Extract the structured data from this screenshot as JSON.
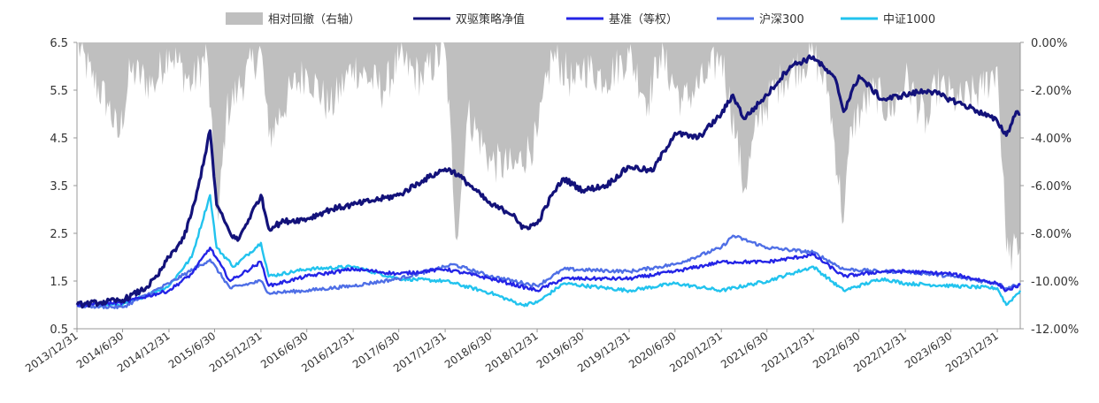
{
  "chart_data": {
    "type": "line",
    "legend": {
      "placement": "top-center",
      "entries": [
        {
          "label": "相对回撤（右轴）",
          "kind": "area",
          "color": "#bfbfbf"
        },
        {
          "label": "双驱策略净值",
          "kind": "line",
          "color": "#13127a"
        },
        {
          "label": "基准（等权）",
          "kind": "line",
          "color": "#2424e6"
        },
        {
          "label": "沪深300",
          "kind": "line",
          "color": "#4f6fe6"
        },
        {
          "label": "中证1000",
          "kind": "line",
          "color": "#22c3ee"
        }
      ]
    },
    "x_start": "2013/12/31",
    "x_end": "2024/3/31",
    "x_ticks": [
      "2013/12/31",
      "2014/6/30",
      "2014/12/31",
      "2015/6/30",
      "2015/12/31",
      "2016/6/30",
      "2016/12/31",
      "2017/6/30",
      "2017/12/31",
      "2018/6/30",
      "2018/12/31",
      "2019/6/30",
      "2019/12/31",
      "2020/6/30",
      "2020/12/31",
      "2021/6/30",
      "2021/12/31",
      "2022/6/30",
      "2022/12/31",
      "2023/6/30",
      "2023/12/31"
    ],
    "y_left": {
      "min": 0.5,
      "max": 6.5,
      "ticks": [
        "6.5",
        "5.5",
        "4.5",
        "3.5",
        "2.5",
        "1.5",
        "0.5"
      ]
    },
    "y_right": {
      "min": -12,
      "max": 0,
      "ticks": [
        "0.00%",
        "-2.00%",
        "-4.00%",
        "-6.00%",
        "-8.00%",
        "-10.00%",
        "-12.00%"
      ]
    },
    "grid": false,
    "series": [
      {
        "name": "双驱策略净值",
        "axis": "left",
        "color": "#13127a",
        "width": 3.2,
        "points": [
          [
            "2013/12/31",
            1.0
          ],
          [
            "2014/3/31",
            1.05
          ],
          [
            "2014/6/30",
            1.1
          ],
          [
            "2014/9/30",
            1.35
          ],
          [
            "2014/11/15",
            1.6
          ],
          [
            "2014/12/31",
            2.0
          ],
          [
            "2015/2/28",
            2.4
          ],
          [
            "2015/4/15",
            3.2
          ],
          [
            "2015/6/12",
            4.65
          ],
          [
            "2015/7/8",
            3.1
          ],
          [
            "2015/8/31",
            2.5
          ],
          [
            "2015/9/30",
            2.35
          ],
          [
            "2015/12/31",
            3.3
          ],
          [
            "2016/1/31",
            2.6
          ],
          [
            "2016/3/31",
            2.75
          ],
          [
            "2016/6/30",
            2.8
          ],
          [
            "2016/9/30",
            3.0
          ],
          [
            "2016/12/31",
            3.1
          ],
          [
            "2017/3/31",
            3.2
          ],
          [
            "2017/6/30",
            3.3
          ],
          [
            "2017/9/30",
            3.6
          ],
          [
            "2017/12/31",
            3.85
          ],
          [
            "2018/1/31",
            3.8
          ],
          [
            "2018/3/31",
            3.55
          ],
          [
            "2018/6/30",
            3.1
          ],
          [
            "2018/9/30",
            2.9
          ],
          [
            "2018/10/31",
            2.6
          ],
          [
            "2018/12/31",
            2.7
          ],
          [
            "2019/2/28",
            3.3
          ],
          [
            "2019/4/15",
            3.65
          ],
          [
            "2019/6/30",
            3.4
          ],
          [
            "2019/9/30",
            3.5
          ],
          [
            "2019/12/31",
            3.9
          ],
          [
            "2020/3/31",
            3.8
          ],
          [
            "2020/6/30",
            4.6
          ],
          [
            "2020/9/30",
            4.5
          ],
          [
            "2020/12/31",
            5.0
          ],
          [
            "2021/2/15",
            5.4
          ],
          [
            "2021/3/31",
            4.9
          ],
          [
            "2021/6/30",
            5.4
          ],
          [
            "2021/9/30",
            6.0
          ],
          [
            "2021/12/31",
            6.2
          ],
          [
            "2022/3/31",
            5.7
          ],
          [
            "2022/4/30",
            5.05
          ],
          [
            "2022/6/30",
            5.8
          ],
          [
            "2022/9/30",
            5.3
          ],
          [
            "2022/12/31",
            5.4
          ],
          [
            "2023/3/31",
            5.5
          ],
          [
            "2023/6/30",
            5.3
          ],
          [
            "2023/9/30",
            5.1
          ],
          [
            "2023/12/31",
            4.85
          ],
          [
            "2024/2/5",
            4.55
          ],
          [
            "2024/3/15",
            5.05
          ],
          [
            "2024/3/31",
            5.0
          ]
        ]
      },
      {
        "name": "基准（等权）",
        "axis": "left",
        "color": "#2424e6",
        "width": 2.4,
        "points": [
          [
            "2013/12/31",
            1.0
          ],
          [
            "2014/6/30",
            1.05
          ],
          [
            "2014/12/31",
            1.3
          ],
          [
            "2015/3/31",
            1.65
          ],
          [
            "2015/6/12",
            2.2
          ],
          [
            "2015/8/31",
            1.5
          ],
          [
            "2015/12/31",
            1.9
          ],
          [
            "2016/1/31",
            1.4
          ],
          [
            "2016/6/30",
            1.6
          ],
          [
            "2016/12/31",
            1.75
          ],
          [
            "2017/6/30",
            1.65
          ],
          [
            "2017/12/31",
            1.75
          ],
          [
            "2018/6/30",
            1.55
          ],
          [
            "2018/12/31",
            1.3
          ],
          [
            "2019/4/15",
            1.55
          ],
          [
            "2019/12/31",
            1.55
          ],
          [
            "2020/6/30",
            1.7
          ],
          [
            "2020/12/31",
            1.9
          ],
          [
            "2021/6/30",
            1.9
          ],
          [
            "2021/12/31",
            2.05
          ],
          [
            "2022/4/30",
            1.6
          ],
          [
            "2022/9/30",
            1.7
          ],
          [
            "2022/12/31",
            1.7
          ],
          [
            "2023/6/30",
            1.65
          ],
          [
            "2023/12/31",
            1.45
          ],
          [
            "2024/2/5",
            1.3
          ],
          [
            "2024/3/31",
            1.42
          ]
        ]
      },
      {
        "name": "沪深300",
        "axis": "left",
        "color": "#4f6fe6",
        "width": 2.4,
        "points": [
          [
            "2013/12/31",
            0.98
          ],
          [
            "2014/6/30",
            0.95
          ],
          [
            "2014/12/31",
            1.45
          ],
          [
            "2015/6/12",
            1.95
          ],
          [
            "2015/8/31",
            1.35
          ],
          [
            "2015/12/31",
            1.5
          ],
          [
            "2016/1/31",
            1.25
          ],
          [
            "2016/6/30",
            1.3
          ],
          [
            "2016/12/31",
            1.4
          ],
          [
            "2017/6/30",
            1.55
          ],
          [
            "2017/12/31",
            1.8
          ],
          [
            "2018/1/31",
            1.85
          ],
          [
            "2018/6/30",
            1.6
          ],
          [
            "2018/12/31",
            1.4
          ],
          [
            "2019/4/15",
            1.75
          ],
          [
            "2019/12/31",
            1.7
          ],
          [
            "2020/6/30",
            1.85
          ],
          [
            "2020/12/31",
            2.2
          ],
          [
            "2021/2/15",
            2.45
          ],
          [
            "2021/6/30",
            2.2
          ],
          [
            "2021/12/31",
            2.1
          ],
          [
            "2022/4/30",
            1.75
          ],
          [
            "2022/9/30",
            1.7
          ],
          [
            "2022/12/31",
            1.7
          ],
          [
            "2023/6/30",
            1.6
          ],
          [
            "2023/12/31",
            1.45
          ],
          [
            "2024/2/5",
            1.35
          ],
          [
            "2024/3/31",
            1.45
          ]
        ]
      },
      {
        "name": "中证1000",
        "axis": "left",
        "color": "#22c3ee",
        "width": 2.4,
        "points": [
          [
            "2013/12/31",
            1.0
          ],
          [
            "2014/6/30",
            1.0
          ],
          [
            "2014/12/31",
            1.4
          ],
          [
            "2015/3/31",
            2.0
          ],
          [
            "2015/6/12",
            3.3
          ],
          [
            "2015/7/8",
            2.2
          ],
          [
            "2015/9/15",
            1.8
          ],
          [
            "2015/12/31",
            2.3
          ],
          [
            "2016/1/31",
            1.6
          ],
          [
            "2016/6/30",
            1.75
          ],
          [
            "2016/12/31",
            1.8
          ],
          [
            "2017/6/30",
            1.55
          ],
          [
            "2017/12/31",
            1.5
          ],
          [
            "2018/6/30",
            1.25
          ],
          [
            "2018/10/31",
            1.0
          ],
          [
            "2018/12/31",
            1.05
          ],
          [
            "2019/4/15",
            1.45
          ],
          [
            "2019/12/31",
            1.3
          ],
          [
            "2020/6/30",
            1.45
          ],
          [
            "2020/12/31",
            1.3
          ],
          [
            "2021/6/30",
            1.5
          ],
          [
            "2021/12/31",
            1.8
          ],
          [
            "2022/4/30",
            1.3
          ],
          [
            "2022/9/30",
            1.55
          ],
          [
            "2022/12/31",
            1.45
          ],
          [
            "2023/6/30",
            1.4
          ],
          [
            "2023/12/31",
            1.35
          ],
          [
            "2024/2/5",
            1.0
          ],
          [
            "2024/3/31",
            1.3
          ]
        ]
      }
    ],
    "drawdown": {
      "name": "相对回撤（右轴）",
      "axis": "right",
      "color": "#bfbfbf",
      "points": [
        [
          "2013/12/31",
          0
        ],
        [
          "2014/2/28",
          -1.5
        ],
        [
          "2014/4/30",
          -2.5
        ],
        [
          "2014/6/15",
          -4.0
        ],
        [
          "2014/7/31",
          -1.2
        ],
        [
          "2014/10/31",
          -1.8
        ],
        [
          "2014/12/31",
          -0.3
        ],
        [
          "2015/3/31",
          -1.8
        ],
        [
          "2015/5/31",
          -0.5
        ],
        [
          "2015/6/30",
          -6.0
        ],
        [
          "2015/7/15",
          -7.5
        ],
        [
          "2015/8/15",
          -3.0
        ],
        [
          "2015/9/30",
          -2.0
        ],
        [
          "2015/12/31",
          -0.3
        ],
        [
          "2016/1/31",
          -4.0
        ],
        [
          "2016/4/30",
          -2.0
        ],
        [
          "2016/6/30",
          -1.2
        ],
        [
          "2016/9/30",
          -2.8
        ],
        [
          "2016/12/31",
          -1.0
        ],
        [
          "2017/4/30",
          -2.0
        ],
        [
          "2017/6/30",
          -0.8
        ],
        [
          "2017/9/30",
          -1.5
        ],
        [
          "2017/12/31",
          -0.3
        ],
        [
          "2018/2/15",
          -8.3
        ],
        [
          "2018/3/31",
          -3.0
        ],
        [
          "2018/6/30",
          -5.0
        ],
        [
          "2018/9/30",
          -5.3
        ],
        [
          "2018/12/31",
          -4.0
        ],
        [
          "2019/2/28",
          -0.5
        ],
        [
          "2019/5/31",
          -1.8
        ],
        [
          "2019/6/30",
          -1.0
        ],
        [
          "2019/9/30",
          -1.5
        ],
        [
          "2019/12/31",
          -0.5
        ],
        [
          "2020/3/15",
          -2.5
        ],
        [
          "2020/4/30",
          -0.5
        ],
        [
          "2020/7/31",
          -2.5
        ],
        [
          "2020/10/31",
          -1.5
        ],
        [
          "2020/12/31",
          -0.5
        ],
        [
          "2021/2/28",
          -4.0
        ],
        [
          "2021/3/31",
          -6.2
        ],
        [
          "2021/5/31",
          -3.0
        ],
        [
          "2021/8/31",
          -1.5
        ],
        [
          "2021/12/31",
          -0.5
        ],
        [
          "2022/2/28",
          -2.0
        ],
        [
          "2022/4/30",
          -7.5
        ],
        [
          "2022/5/31",
          -3.5
        ],
        [
          "2022/8/31",
          -2.0
        ],
        [
          "2022/10/31",
          -3.0
        ],
        [
          "2022/12/31",
          -1.5
        ],
        [
          "2023/3/31",
          -3.5
        ],
        [
          "2023/4/30",
          -1.8
        ],
        [
          "2023/7/31",
          -2.5
        ],
        [
          "2023/10/31",
          -2.0
        ],
        [
          "2023/12/31",
          -1.0
        ],
        [
          "2024/1/31",
          -7.5
        ],
        [
          "2024/2/15",
          -9.0
        ],
        [
          "2024/3/31",
          -8.5
        ]
      ]
    }
  }
}
